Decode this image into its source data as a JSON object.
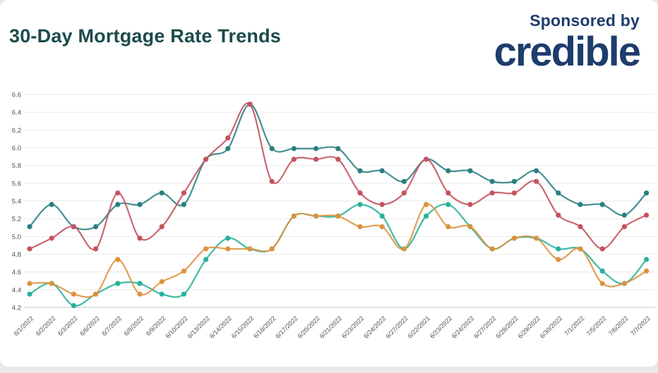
{
  "header": {
    "title": "30-Day Mortgage Rate Trends",
    "title_color": "#1d4b4b",
    "sponsored_by": "Sponsored by",
    "brand": "credible",
    "brand_color": "#1d3d6d"
  },
  "chart_data": {
    "type": "line",
    "title": "30-Day Mortgage Rate Trends",
    "xlabel": "",
    "ylabel": "",
    "ylim": [
      4.2,
      6.6
    ],
    "ytick_step": 0.2,
    "grid": true,
    "legend_position": "none",
    "x": [
      "6/1/2022",
      "6/2/2022",
      "6/3/2022",
      "6/6/2022",
      "6/7/2022",
      "6/8/2022",
      "6/9/2022",
      "6/10/2022",
      "6/13/2022",
      "6/14/2022",
      "6/15/2022",
      "6/16/2022",
      "6/17/2022",
      "6/20/2022",
      "6/21/2022",
      "6/23/2022",
      "6/24/2022",
      "6/27/2022",
      "6/22/2021",
      "6/23/2022",
      "6/24/2022",
      "6/27/2022",
      "6/28/2022",
      "6/29/2022",
      "6/30/2022",
      "7/1/2022",
      "7/5/2022",
      "7/6/2022",
      "7/7/2022"
    ],
    "series": [
      {
        "name": "teal-line",
        "color": "#2a7f80",
        "values": [
          5.11,
          5.36,
          5.11,
          5.11,
          5.36,
          5.36,
          5.49,
          5.36,
          5.87,
          5.99,
          6.49,
          5.99,
          5.99,
          5.99,
          5.99,
          5.74,
          5.74,
          5.62,
          5.87,
          5.74,
          5.74,
          5.62,
          5.62,
          5.74,
          5.49,
          5.36,
          5.36,
          5.24,
          5.49
        ]
      },
      {
        "name": "red-line",
        "color": "#c4525e",
        "values": [
          4.86,
          4.98,
          5.11,
          4.86,
          5.49,
          4.98,
          5.11,
          5.49,
          5.87,
          6.11,
          6.49,
          5.62,
          5.87,
          5.87,
          5.87,
          5.49,
          5.36,
          5.49,
          5.87,
          5.49,
          5.36,
          5.49,
          5.49,
          5.62,
          5.24,
          5.11,
          4.86,
          5.11,
          5.24
        ]
      },
      {
        "name": "green-line",
        "color": "#27b19b",
        "values": [
          4.35,
          4.47,
          4.22,
          4.35,
          4.47,
          4.47,
          4.35,
          4.35,
          4.74,
          4.98,
          4.86,
          4.86,
          5.23,
          5.23,
          5.23,
          5.36,
          5.23,
          4.86,
          5.23,
          5.36,
          5.11,
          4.86,
          4.98,
          4.98,
          4.86,
          4.86,
          4.61,
          4.47,
          4.74
        ]
      },
      {
        "name": "orange-line",
        "color": "#dd923d",
        "values": [
          4.47,
          4.47,
          4.35,
          4.35,
          4.74,
          4.35,
          4.49,
          4.61,
          4.86,
          4.86,
          4.86,
          4.86,
          5.23,
          5.23,
          5.23,
          5.11,
          5.11,
          4.86,
          5.36,
          5.11,
          5.11,
          4.86,
          4.98,
          4.98,
          4.74,
          4.86,
          4.47,
          4.47,
          4.61
        ]
      }
    ],
    "styles": {
      "grid_color": "#eaeaea",
      "axis_color": "#c9c9c9",
      "tick_color": "#4f4f4f"
    }
  }
}
